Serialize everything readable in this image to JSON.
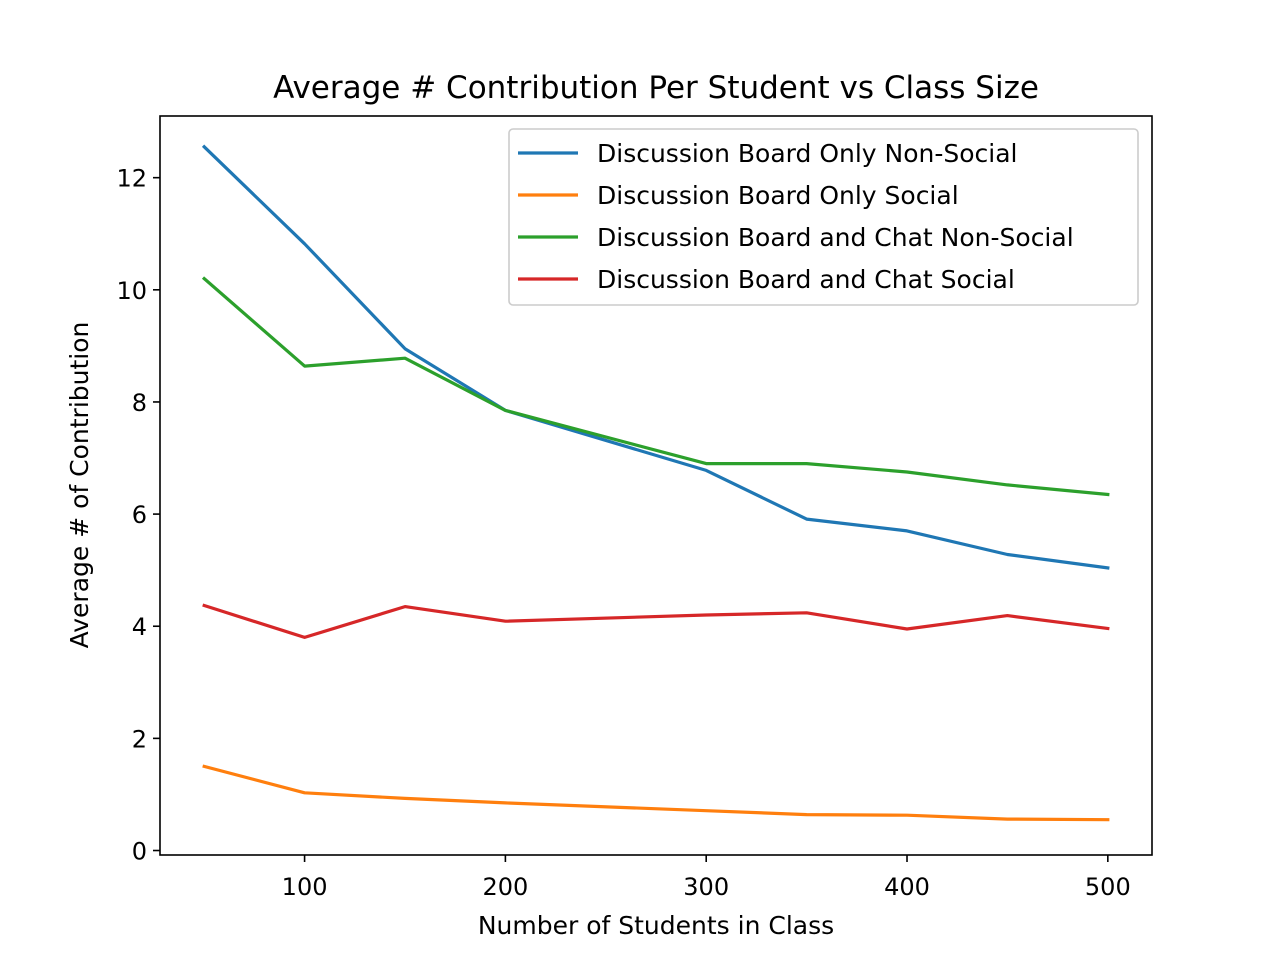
{
  "chart_data": {
    "type": "line",
    "title": "Average # Contribution Per Student vs Class Size",
    "xlabel": "Number of Students in Class",
    "ylabel": "Average # of Contribution",
    "xlim": [
      28,
      522
    ],
    "ylim": [
      -0.08,
      13.1
    ],
    "xticks": [
      100,
      200,
      300,
      400,
      500
    ],
    "yticks": [
      0,
      2,
      4,
      6,
      8,
      10,
      12
    ],
    "grid": false,
    "legend_position": "top-right",
    "x": [
      50,
      100,
      150,
      200,
      300,
      350,
      400,
      450,
      500
    ],
    "series": [
      {
        "name": "Discussion Board Only Non-Social",
        "color": "#1f77b4",
        "values": [
          12.55,
          10.82,
          8.95,
          7.85,
          6.78,
          5.91,
          5.7,
          5.28,
          5.04
        ]
      },
      {
        "name": "Discussion Board Only Social",
        "color": "#ff7f0e",
        "values": [
          1.5,
          1.03,
          0.93,
          0.85,
          0.71,
          0.64,
          0.63,
          0.56,
          0.55
        ]
      },
      {
        "name": "Discussion Board and Chat Non-Social",
        "color": "#2ca02c",
        "values": [
          10.2,
          8.64,
          8.78,
          7.85,
          6.9,
          6.9,
          6.75,
          6.52,
          6.35
        ]
      },
      {
        "name": "Discussion Board and Chat Social",
        "color": "#d62728",
        "values": [
          4.37,
          3.8,
          4.35,
          4.09,
          4.2,
          4.24,
          3.95,
          4.19,
          3.96
        ]
      }
    ]
  }
}
